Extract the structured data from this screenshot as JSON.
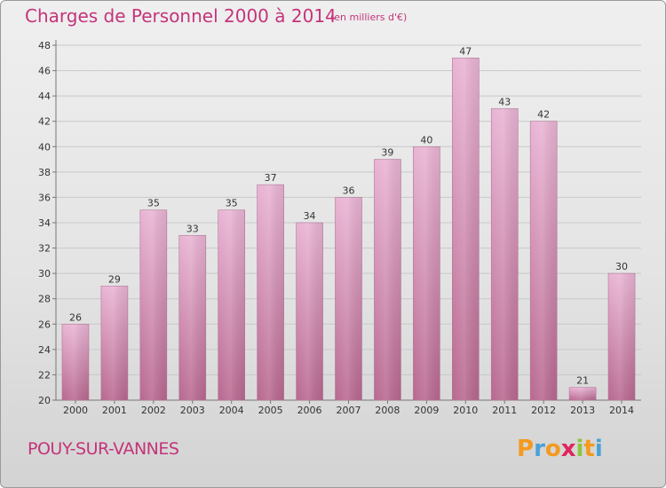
{
  "title": "Charges de Personnel 2000 à 2014",
  "subtitle": "(en milliers d'€)",
  "commune": "POUY-SUR-VANNES",
  "logo": {
    "letters": [
      "P",
      "r",
      "o",
      "x",
      "i",
      "t",
      "i"
    ],
    "colors": [
      "#f39a1f",
      "#4aa1d8",
      "#f39a1f",
      "#e0245e",
      "#8cc63f",
      "#f39a1f",
      "#4aa1d8"
    ]
  },
  "colors": {
    "bar_light": "#e9b4d4",
    "bar_dark": "#b8688f",
    "text_accent": "#c4347a"
  },
  "chart_data": {
    "type": "bar",
    "categories": [
      "2000",
      "2001",
      "2002",
      "2003",
      "2004",
      "2005",
      "2006",
      "2007",
      "2008",
      "2009",
      "2010",
      "2011",
      "2012",
      "2013",
      "2014"
    ],
    "values": [
      26,
      29,
      35,
      33,
      35,
      37,
      34,
      36,
      39,
      40,
      47,
      43,
      42,
      21,
      30
    ],
    "yticks": [
      20,
      22,
      24,
      26,
      28,
      30,
      32,
      34,
      36,
      38,
      40,
      42,
      44,
      46,
      48
    ],
    "ylim": [
      20,
      48
    ],
    "grid": true
  }
}
